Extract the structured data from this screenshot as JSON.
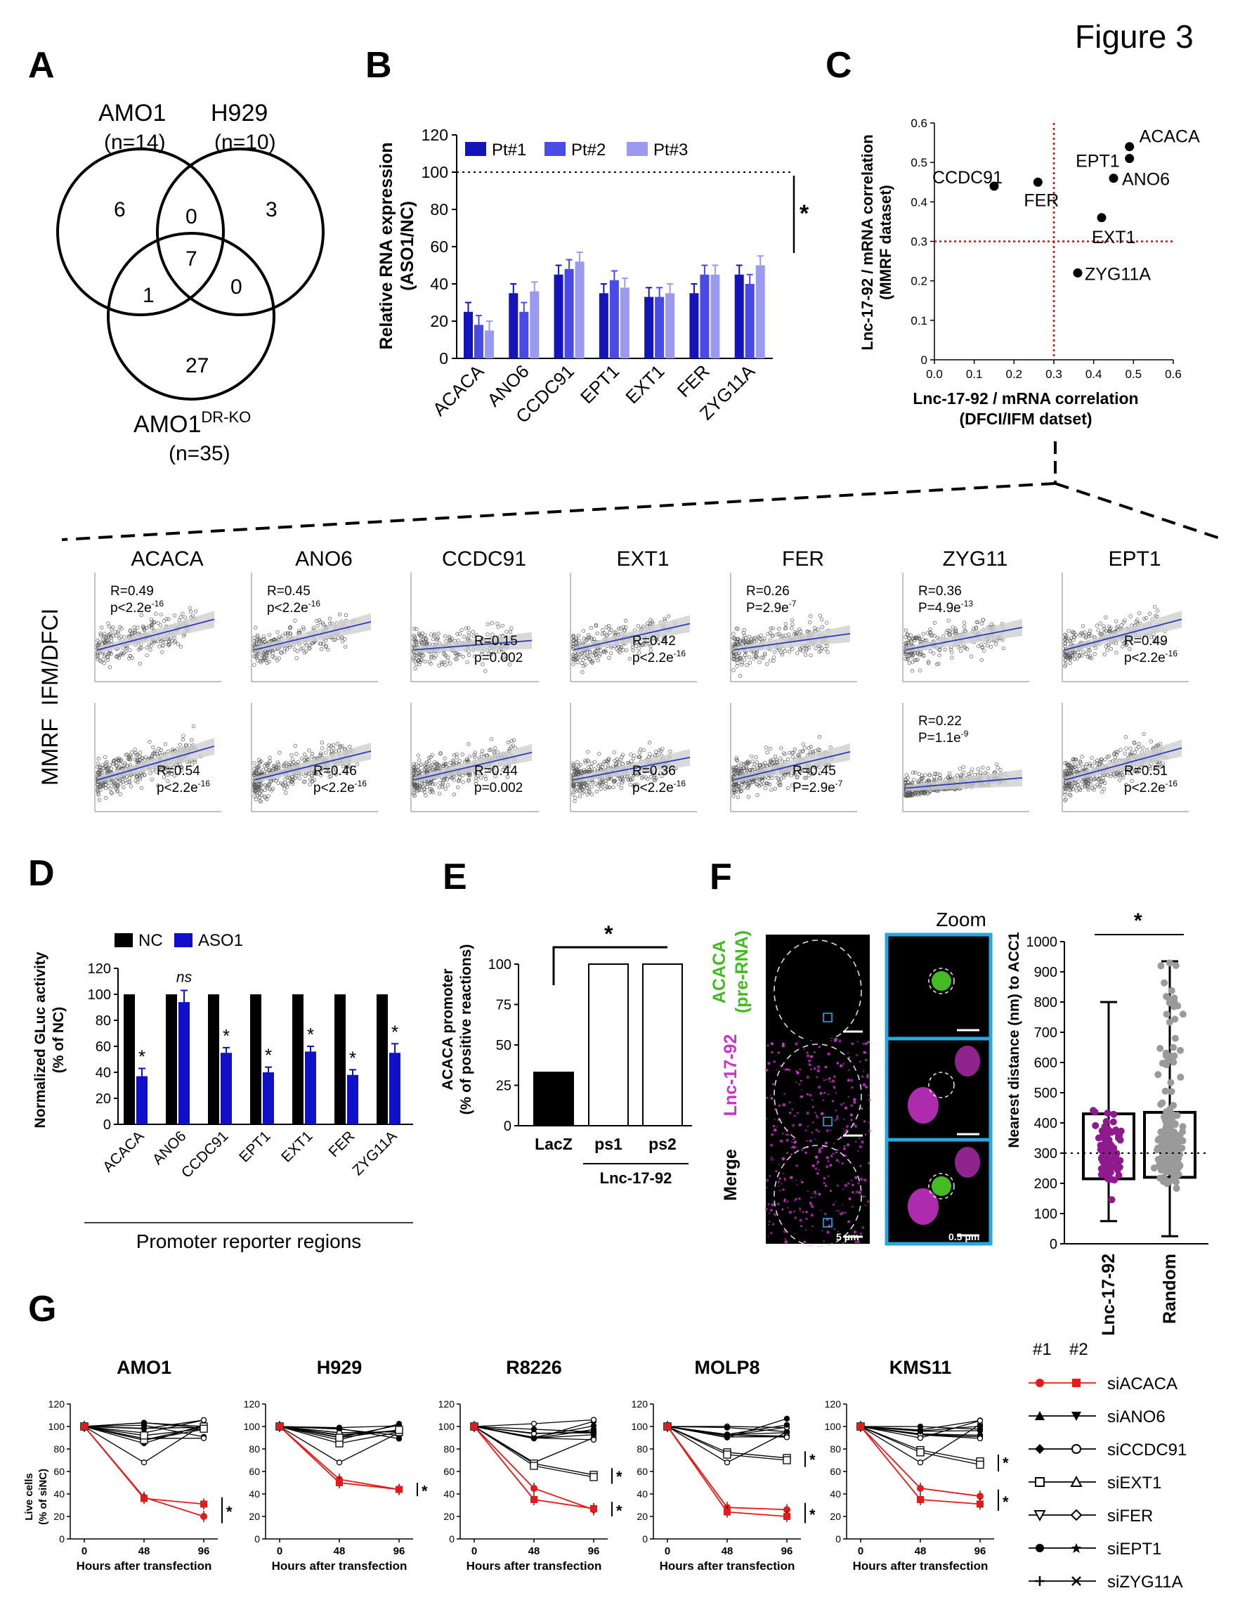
{
  "figure_title": "Figure 3",
  "colors": {
    "pt1": "#1414b8",
    "pt2": "#4a4ae6",
    "pt3": "#9a9af0",
    "aso1": "#1010c8",
    "nc": "#000000",
    "red": "#e41a1c",
    "magenta": "#cc33cc",
    "green": "#44bb22",
    "cyan": "#29a8e0",
    "purple": "#8e1a8e",
    "gray": "#9a9a9a",
    "fit": "#2a3bc0",
    "dotred": "#cc1111"
  },
  "panelA": {
    "label": "A",
    "sets": [
      {
        "name": "AMO1",
        "n": "(n=14)"
      },
      {
        "name": "H929",
        "n": "(n=10)"
      },
      {
        "name": "AMO1",
        "sup": "DR-KO",
        "n": "(n=35)"
      }
    ],
    "counts": {
      "amo1_only": "6",
      "amo1_h929": "0",
      "h929_only": "3",
      "all": "7",
      "amo1_dr": "1",
      "h929_dr": "0",
      "dr_only": "27"
    }
  },
  "panelB": {
    "label": "B",
    "legend": [
      "Pt#1",
      "Pt#2",
      "Pt#3"
    ],
    "significance": "*"
  },
  "panelC": {
    "label": "C",
    "point_labels": [
      "ACACA",
      "EPT1",
      "ANO6",
      "CCDC91",
      "FER",
      "EXT1",
      "ZYG11A"
    ]
  },
  "panelCorr": {
    "row_labels": [
      "IFM/DFCI",
      "MMRF"
    ],
    "columns": [
      {
        "gene": "ACACA",
        "top": {
          "r": "R=0.49",
          "p": "p<2.2e",
          "e": "-16"
        },
        "bottom": {
          "r": "R=0.54",
          "p": "p<2.2e",
          "e": "-16"
        }
      },
      {
        "gene": "ANO6",
        "top": {
          "r": "R=0.45",
          "p": "p<2.2e",
          "e": "-16"
        },
        "bottom": {
          "r": "R=0.46",
          "p": "p<2.2e",
          "e": "-16"
        }
      },
      {
        "gene": "CCDC91",
        "top": {
          "r": "R=0.15",
          "p": "p=0.002",
          "e": ""
        },
        "bottom": {
          "r": "R=0.44",
          "p": "p=0.002",
          "e": ""
        }
      },
      {
        "gene": "EXT1",
        "top": {
          "r": "R=0.42",
          "p": "p<2.2e",
          "e": "-16"
        },
        "bottom": {
          "r": "R=0.36",
          "p": "p<2.2e",
          "e": "-16"
        }
      },
      {
        "gene": "FER",
        "top": {
          "r": "R=0.26",
          "p": "P=2.9e",
          "e": "-7"
        },
        "bottom": {
          "r": "R=0.45",
          "p": "P=2.9e",
          "e": "-7"
        }
      },
      {
        "gene": "ZYG11",
        "top": {
          "r": "R=0.36",
          "p": "P=4.9e",
          "e": "-13"
        },
        "bottom": {
          "r": "R=0.22",
          "p": "P=1.1e",
          "e": "-9"
        }
      },
      {
        "gene": "EPT1",
        "top": {
          "r": "R=0.49",
          "p": "p<2.2e",
          "e": "-16"
        },
        "bottom": {
          "r": "R=0.51",
          "p": "p<2.2e",
          "e": "-16"
        }
      }
    ]
  },
  "panelD": {
    "label": "D",
    "legend": [
      "NC",
      "ASO1"
    ],
    "ns": "ns",
    "star": "*",
    "xtitle": "Promoter reporter regions"
  },
  "panelE": {
    "label": "E",
    "star": "*",
    "group_label": "Lnc-17-92"
  },
  "panelF": {
    "label": "F",
    "zoom": "Zoom",
    "row_labels": [
      "ACACA",
      "(pre-RNA)",
      "Lnc-17-92",
      "Merge"
    ],
    "scale_left": "5 μm",
    "scale_right": "0.5 μm",
    "star": "*"
  },
  "panelG": {
    "label": "G",
    "y_title_1": "Live cells",
    "y_title_2": "(% of siNC)",
    "star": "*",
    "legend_header": [
      "#1",
      "#2"
    ],
    "legend_items": [
      "siACACA",
      "siANO6",
      "siCCDC91",
      "siEXT1",
      "siFER",
      "siEPT1",
      "siZYG11A"
    ]
  },
  "chart_data": [
    {
      "id": "B",
      "type": "bar",
      "ylabel": "Relative RNA expression (ASO1/NC)",
      "ylim": [
        0,
        120
      ],
      "yticks": [
        0,
        20,
        40,
        60,
        80,
        100,
        120
      ],
      "categories": [
        "ACACA",
        "ANO6",
        "CCDC91",
        "EPT1",
        "EXT1",
        "FER",
        "ZYG11A"
      ],
      "series": [
        {
          "name": "Pt#1",
          "values": [
            25,
            35,
            45,
            35,
            33,
            35,
            45
          ],
          "err": [
            5,
            5,
            5,
            5,
            5,
            5,
            5
          ]
        },
        {
          "name": "Pt#2",
          "values": [
            18,
            25,
            48,
            42,
            33,
            45,
            40
          ],
          "err": [
            5,
            5,
            5,
            5,
            5,
            5,
            5
          ]
        },
        {
          "name": "Pt#3",
          "values": [
            15,
            36,
            52,
            38,
            35,
            45,
            50
          ],
          "err": [
            5,
            5,
            5,
            5,
            5,
            5,
            5
          ]
        }
      ],
      "reference_line": 100
    },
    {
      "id": "C",
      "type": "scatter",
      "xlabel": "Lnc-17-92 / mRNA correlation (DFCI/IFM datset)",
      "ylabel": "Lnc-17-92 / mRNA correlation (MMRF dataset)",
      "xlim": [
        0,
        0.6
      ],
      "ylim": [
        0,
        0.6
      ],
      "xticks": [
        "0.0",
        "0.1",
        "0.2",
        "0.3",
        "0.4",
        "0.5",
        "0.6"
      ],
      "yticks": [
        "0",
        "0.1",
        "0.2",
        "0.3",
        "0.4",
        "0.5",
        "0.6"
      ],
      "threshold": 0.3,
      "points": [
        {
          "label": "ACACA",
          "x": 0.49,
          "y": 0.54
        },
        {
          "label": "EPT1",
          "x": 0.49,
          "y": 0.51
        },
        {
          "label": "ANO6",
          "x": 0.45,
          "y": 0.46
        },
        {
          "label": "CCDC91",
          "x": 0.15,
          "y": 0.44
        },
        {
          "label": "FER",
          "x": 0.26,
          "y": 0.45
        },
        {
          "label": "EXT1",
          "x": 0.42,
          "y": 0.36
        },
        {
          "label": "ZYG11A",
          "x": 0.36,
          "y": 0.22
        }
      ]
    },
    {
      "id": "D",
      "type": "bar",
      "ylabel": "Normalized GLuc activity (% of NC)",
      "ylim": [
        0,
        120
      ],
      "yticks": [
        0,
        20,
        40,
        60,
        80,
        100,
        120
      ],
      "categories": [
        "ACACA",
        "ANO6",
        "CCDC91",
        "EPT1",
        "EXT1",
        "FER",
        "ZYG11A"
      ],
      "series": [
        {
          "name": "NC",
          "values": [
            100,
            100,
            100,
            100,
            100,
            100,
            100
          ]
        },
        {
          "name": "ASO1",
          "values": [
            37,
            94,
            55,
            40,
            56,
            38,
            55
          ],
          "err": [
            6,
            9,
            4,
            4,
            4,
            4,
            7
          ]
        }
      ]
    },
    {
      "id": "E",
      "type": "bar",
      "ylabel": "ACACA promoter (% of positive reactions)",
      "ylim": [
        0,
        100
      ],
      "yticks": [
        0,
        25,
        50,
        75,
        100
      ],
      "categories": [
        "LacZ",
        "ps1",
        "ps2"
      ],
      "values": [
        33,
        100,
        100
      ]
    },
    {
      "id": "F",
      "type": "box",
      "ylabel": "Nearest distance (nm) to ACC1",
      "ylim": [
        0,
        1000
      ],
      "yticks": [
        0,
        100,
        200,
        300,
        400,
        500,
        600,
        700,
        800,
        900,
        1000
      ],
      "categories": [
        "Lnc-17-92",
        "Random"
      ],
      "reference_line": 300,
      "boxes": [
        {
          "name": "Lnc-17-92",
          "min": 75,
          "q1": 215,
          "median": 300,
          "q3": 430,
          "max": 800
        },
        {
          "name": "Random",
          "min": 25,
          "q1": 220,
          "median": 300,
          "q3": 435,
          "max": 935
        }
      ]
    },
    {
      "id": "G",
      "type": "line",
      "xlabel": "Hours after transfection",
      "x": [
        0,
        48,
        96
      ],
      "ylim": [
        0,
        120
      ],
      "yticks": [
        0,
        20,
        40,
        60,
        80,
        100,
        120
      ],
      "panels": [
        {
          "title": "AMO1",
          "acaca1": [
            100,
            37,
            20
          ],
          "acaca2": [
            100,
            36,
            31
          ],
          "ext1": [
            100,
            88,
            100
          ],
          "ext2": [
            100,
            92,
            98
          ]
        },
        {
          "title": "H929",
          "acaca1": [
            100,
            53,
            44
          ],
          "acaca2": [
            100,
            50,
            44
          ],
          "ext1": [
            100,
            85,
            95
          ],
          "ext2": [
            100,
            90,
            97
          ]
        },
        {
          "title": "R8226",
          "acaca1": [
            100,
            45,
            26
          ],
          "acaca2": [
            100,
            35,
            27
          ],
          "ext1": [
            100,
            67,
            57
          ],
          "ext2": [
            100,
            65,
            55
          ]
        },
        {
          "title": "MOLP8",
          "acaca1": [
            100,
            28,
            26
          ],
          "acaca2": [
            100,
            24,
            20
          ],
          "ext1": [
            100,
            77,
            72
          ],
          "ext2": [
            100,
            75,
            70
          ]
        },
        {
          "title": "KMS11",
          "acaca1": [
            100,
            45,
            38
          ],
          "acaca2": [
            100,
            35,
            31
          ],
          "ext1": [
            100,
            79,
            69
          ],
          "ext2": [
            100,
            77,
            66
          ]
        }
      ]
    }
  ]
}
